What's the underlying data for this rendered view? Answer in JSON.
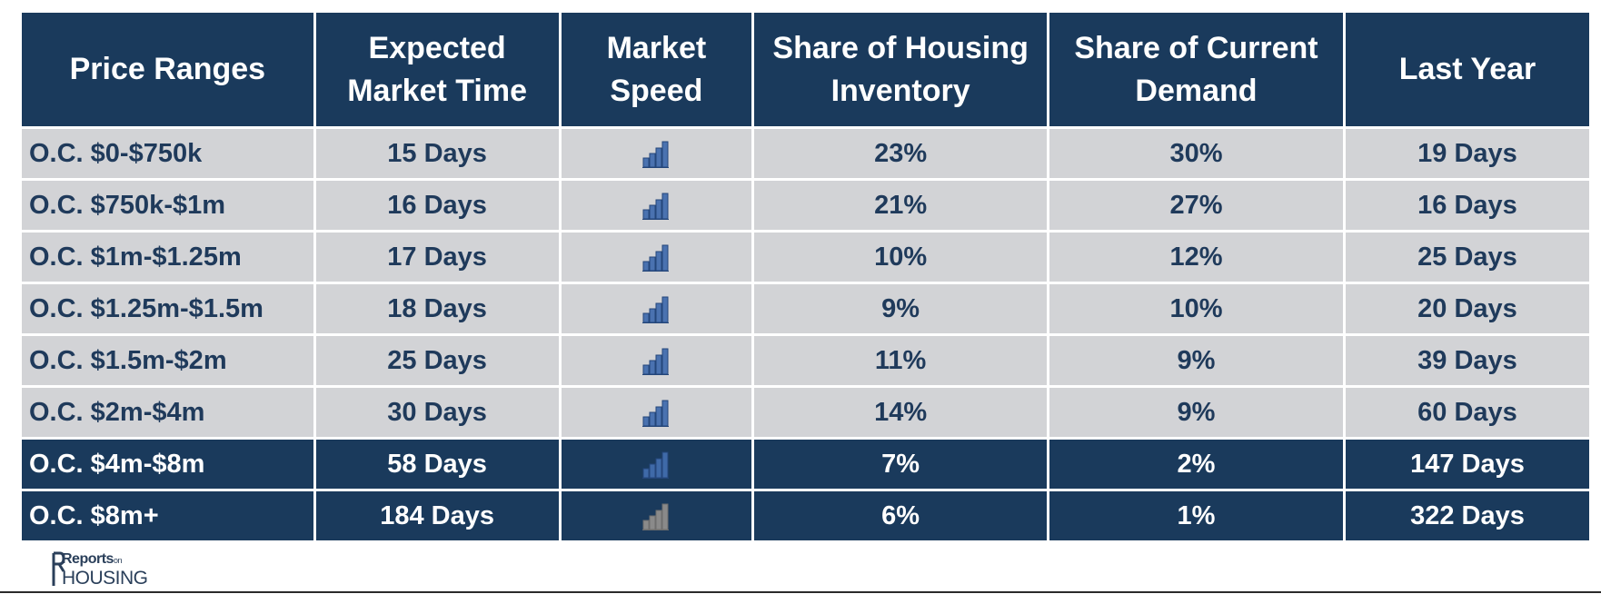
{
  "headers": [
    "Price Ranges",
    "Expected Market Time",
    "Market Speed",
    "Share of Housing Inventory",
    "Share of Current Demand",
    "Last Year"
  ],
  "header_lines": [
    [
      "Price Ranges"
    ],
    [
      "Expected",
      "Market Time"
    ],
    [
      "Market",
      "Speed"
    ],
    [
      "Share of Housing",
      "Inventory"
    ],
    [
      "Share of Current",
      "Demand"
    ],
    [
      "Last Year"
    ]
  ],
  "rows": [
    {
      "range": "O.C. $0-$750k",
      "market_time": "15 Days",
      "speed_bars": 4,
      "inventory": "23%",
      "demand": "30%",
      "last_year": "19 Days",
      "style": "light"
    },
    {
      "range": "O.C. $750k-$1m",
      "market_time": "16 Days",
      "speed_bars": 4,
      "inventory": "21%",
      "demand": "27%",
      "last_year": "16 Days",
      "style": "light"
    },
    {
      "range": "O.C. $1m-$1.25m",
      "market_time": "17 Days",
      "speed_bars": 4,
      "inventory": "10%",
      "demand": "12%",
      "last_year": "25 Days",
      "style": "light"
    },
    {
      "range": "O.C. $1.25m-$1.5m",
      "market_time": "18 Days",
      "speed_bars": 4,
      "inventory": "9%",
      "demand": "10%",
      "last_year": "20 Days",
      "style": "light"
    },
    {
      "range": "O.C. $1.5m-$2m",
      "market_time": "25 Days",
      "speed_bars": 4,
      "inventory": "11%",
      "demand": "9%",
      "last_year": "39 Days",
      "style": "light"
    },
    {
      "range": "O.C. $2m-$4m",
      "market_time": "30 Days",
      "speed_bars": 4,
      "inventory": "14%",
      "demand": "9%",
      "last_year": "60 Days",
      "style": "light"
    },
    {
      "range": "O.C. $4m-$8m",
      "market_time": "58 Days",
      "speed_bars": 3,
      "inventory": "7%",
      "demand": "2%",
      "last_year": "147 Days",
      "style": "dark"
    },
    {
      "range": "O.C. $8m+",
      "market_time": "184 Days",
      "speed_bars": 2,
      "inventory": "6%",
      "demand": "1%",
      "last_year": "322 Days",
      "style": "dark"
    }
  ],
  "chart_data": {
    "type": "table",
    "columns": [
      "Price Ranges",
      "Expected Market Time",
      "Market Speed",
      "Share of Housing Inventory",
      "Share of Current Demand",
      "Last Year"
    ],
    "rows": [
      [
        "O.C. $0-$750k",
        "15 Days",
        4,
        "23%",
        "30%",
        "19 Days"
      ],
      [
        "O.C. $750k-$1m",
        "16 Days",
        4,
        "21%",
        "27%",
        "16 Days"
      ],
      [
        "O.C. $1m-$1.25m",
        "17 Days",
        4,
        "10%",
        "12%",
        "25 Days"
      ],
      [
        "O.C. $1.25m-$1.5m",
        "18 Days",
        4,
        "9%",
        "10%",
        "20 Days"
      ],
      [
        "O.C. $1.5m-$2m",
        "25 Days",
        4,
        "11%",
        "9%",
        "39 Days"
      ],
      [
        "O.C. $2m-$4m",
        "30 Days",
        4,
        "14%",
        "9%",
        "60 Days"
      ],
      [
        "O.C. $4m-$8m",
        "58 Days",
        3,
        "7%",
        "2%",
        "147 Days"
      ],
      [
        "O.C. $8m+",
        "184 Days",
        2,
        "6%",
        "1%",
        "322 Days"
      ]
    ]
  },
  "logo": {
    "line1": "Reports",
    "line1_small": "on",
    "line2": "HOUSING"
  },
  "colors": {
    "header_bg": "#1a3a5c",
    "light_row_bg": "#d2d3d6",
    "light_row_text": "#1f3a5b",
    "bar_filled": "#4a72b0",
    "bar_empty": "#8a8a8a"
  }
}
